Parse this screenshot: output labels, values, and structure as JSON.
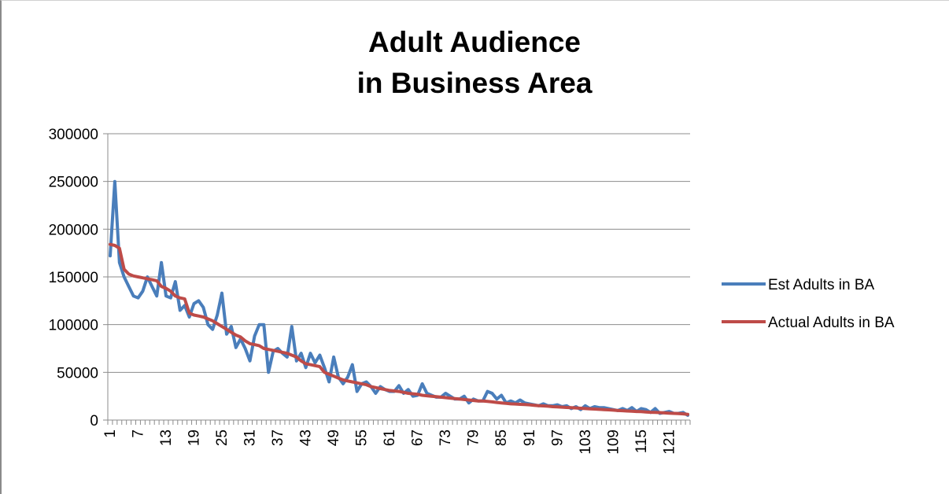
{
  "chart_data": {
    "type": "line",
    "title_lines": [
      "Adult Audience",
      "in Business Area"
    ],
    "xlabel": "",
    "ylabel": "",
    "x_count": 125,
    "x_tick_start": 1,
    "x_tick_step": 6,
    "x_tick_labels": [
      "1",
      "7",
      "13",
      "19",
      "25",
      "31",
      "37",
      "43",
      "49",
      "55",
      "61",
      "67",
      "73",
      "79",
      "85",
      "91",
      "97",
      "103",
      "109",
      "115",
      "121"
    ],
    "ylim": [
      0,
      300000
    ],
    "y_ticks": [
      "0",
      "50000",
      "100000",
      "150000",
      "200000",
      "250000",
      "300000"
    ],
    "y_tick_values": [
      0,
      50000,
      100000,
      150000,
      200000,
      250000,
      300000
    ],
    "grid": true,
    "legend_position": "right",
    "series": [
      {
        "name": "Est Adults in BA",
        "color": "#4a7ebb",
        "values": [
          172000,
          250000,
          165000,
          150000,
          140000,
          130000,
          128000,
          135000,
          150000,
          140000,
          130000,
          165000,
          130000,
          128000,
          145000,
          115000,
          120000,
          108000,
          122000,
          125000,
          118000,
          100000,
          95000,
          110000,
          133000,
          90000,
          98000,
          76000,
          85000,
          75000,
          62000,
          88000,
          100000,
          100000,
          50000,
          72000,
          75000,
          70000,
          66000,
          98000,
          62000,
          70000,
          55000,
          70000,
          60000,
          68000,
          55000,
          40000,
          66000,
          45000,
          38000,
          45000,
          58000,
          30000,
          38000,
          40000,
          35000,
          28000,
          35000,
          32000,
          30000,
          30000,
          36000,
          28000,
          32000,
          25000,
          26000,
          38000,
          28000,
          26000,
          24000,
          24000,
          28000,
          25000,
          22000,
          22000,
          25000,
          18000,
          22000,
          20000,
          20000,
          30000,
          28000,
          22000,
          26000,
          18000,
          20000,
          18000,
          21000,
          18000,
          17000,
          16000,
          15000,
          17000,
          15000,
          15000,
          16000,
          14000,
          15000,
          12000,
          14000,
          11000,
          15000,
          12000,
          14000,
          13000,
          13000,
          12000,
          11000,
          10000,
          12000,
          10000,
          13000,
          9000,
          12000,
          11000,
          8000,
          12000,
          7000,
          8000,
          9000,
          7000,
          7000,
          8000,
          5000
        ]
      },
      {
        "name": "Actual Adults in BA",
        "color": "#be4b48",
        "values": [
          184000,
          183000,
          180000,
          158000,
          153000,
          151000,
          150000,
          149000,
          148000,
          147000,
          146000,
          140000,
          138000,
          135000,
          130000,
          128000,
          127000,
          112000,
          110000,
          109000,
          108000,
          106000,
          104000,
          101000,
          98000,
          95000,
          92000,
          89000,
          87000,
          83000,
          80000,
          79000,
          78000,
          75000,
          74000,
          73000,
          72000,
          71000,
          70000,
          68000,
          66000,
          62000,
          59000,
          58000,
          57000,
          56000,
          50000,
          48000,
          46000,
          44000,
          42000,
          41000,
          40000,
          39000,
          38000,
          37000,
          35000,
          34000,
          33000,
          32000,
          31000,
          30500,
          30000,
          29000,
          28000,
          27500,
          27000,
          26000,
          25500,
          25000,
          24500,
          24000,
          23500,
          23000,
          22500,
          22000,
          21500,
          21000,
          20500,
          20000,
          20000,
          19500,
          19000,
          18500,
          18000,
          17500,
          17000,
          16800,
          16500,
          16200,
          16000,
          15500,
          15000,
          14800,
          14500,
          14000,
          13800,
          13500,
          13200,
          13000,
          12700,
          12400,
          12000,
          11800,
          11500,
          11200,
          11000,
          10700,
          10400,
          10000,
          9800,
          9500,
          9200,
          9000,
          8800,
          8500,
          8200,
          8000,
          7800,
          7500,
          7200,
          7000,
          6800,
          6500,
          6000
        ]
      }
    ]
  }
}
